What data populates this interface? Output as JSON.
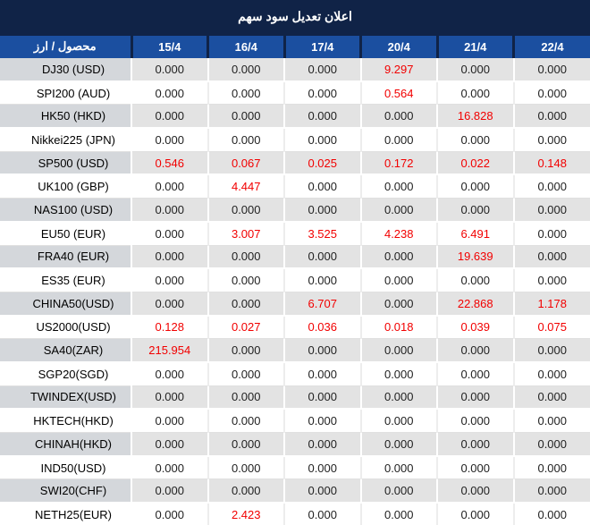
{
  "colors": {
    "title_bar": "#102347",
    "header_background": "#1b4fa0",
    "header_text": "#ffffff",
    "alt_row_background": "#e3e3e3",
    "alt_row_label_background": "#d4d7db",
    "value_text": "#222222",
    "highlight_red": "#f20000"
  },
  "chart_data": {
    "type": "table",
    "title": "اعلان تعديل سود سهم",
    "columns": [
      "محصول / ارز",
      "15/4",
      "16/4",
      "17/4",
      "20/4",
      "21/4",
      "22/4"
    ],
    "rows": [
      {
        "label": "DJ30 (USD)",
        "values": [
          "0.000",
          "0.000",
          "0.000",
          "9.297",
          "0.000",
          "0.000"
        ],
        "red": [
          3
        ]
      },
      {
        "label": "SPI200 (AUD)",
        "values": [
          "0.000",
          "0.000",
          "0.000",
          "0.564",
          "0.000",
          "0.000"
        ],
        "red": [
          3
        ]
      },
      {
        "label": "HK50 (HKD)",
        "values": [
          "0.000",
          "0.000",
          "0.000",
          "0.000",
          "16.828",
          "0.000"
        ],
        "red": [
          4
        ]
      },
      {
        "label": "Nikkei225 (JPN)",
        "values": [
          "0.000",
          "0.000",
          "0.000",
          "0.000",
          "0.000",
          "0.000"
        ],
        "red": []
      },
      {
        "label": "SP500 (USD)",
        "values": [
          "0.546",
          "0.067",
          "0.025",
          "0.172",
          "0.022",
          "0.148"
        ],
        "red": [
          0,
          1,
          2,
          3,
          4,
          5
        ]
      },
      {
        "label": "UK100 (GBP)",
        "values": [
          "0.000",
          "4.447",
          "0.000",
          "0.000",
          "0.000",
          "0.000"
        ],
        "red": [
          1
        ]
      },
      {
        "label": "NAS100 (USD)",
        "values": [
          "0.000",
          "0.000",
          "0.000",
          "0.000",
          "0.000",
          "0.000"
        ],
        "red": []
      },
      {
        "label": "EU50 (EUR)",
        "values": [
          "0.000",
          "3.007",
          "3.525",
          "4.238",
          "6.491",
          "0.000"
        ],
        "red": [
          1,
          2,
          3,
          4
        ]
      },
      {
        "label": "FRA40 (EUR)",
        "values": [
          "0.000",
          "0.000",
          "0.000",
          "0.000",
          "19.639",
          "0.000"
        ],
        "red": [
          4
        ]
      },
      {
        "label": "ES35 (EUR)",
        "values": [
          "0.000",
          "0.000",
          "0.000",
          "0.000",
          "0.000",
          "0.000"
        ],
        "red": []
      },
      {
        "label": "CHINA50(USD)",
        "values": [
          "0.000",
          "0.000",
          "6.707",
          "0.000",
          "22.868",
          "1.178"
        ],
        "red": [
          2,
          4,
          5
        ]
      },
      {
        "label": "US2000(USD)",
        "values": [
          "0.128",
          "0.027",
          "0.036",
          "0.018",
          "0.039",
          "0.075"
        ],
        "red": [
          0,
          1,
          2,
          3,
          4,
          5
        ]
      },
      {
        "label": "SA40(ZAR)",
        "values": [
          "215.954",
          "0.000",
          "0.000",
          "0.000",
          "0.000",
          "0.000"
        ],
        "red": [
          0
        ]
      },
      {
        "label": "SGP20(SGD)",
        "values": [
          "0.000",
          "0.000",
          "0.000",
          "0.000",
          "0.000",
          "0.000"
        ],
        "red": []
      },
      {
        "label": "TWINDEX(USD)",
        "values": [
          "0.000",
          "0.000",
          "0.000",
          "0.000",
          "0.000",
          "0.000"
        ],
        "red": []
      },
      {
        "label": "HKTECH(HKD)",
        "values": [
          "0.000",
          "0.000",
          "0.000",
          "0.000",
          "0.000",
          "0.000"
        ],
        "red": []
      },
      {
        "label": "CHINAH(HKD)",
        "values": [
          "0.000",
          "0.000",
          "0.000",
          "0.000",
          "0.000",
          "0.000"
        ],
        "red": []
      },
      {
        "label": "IND50(USD)",
        "values": [
          "0.000",
          "0.000",
          "0.000",
          "0.000",
          "0.000",
          "0.000"
        ],
        "red": []
      },
      {
        "label": "SWI20(CHF)",
        "values": [
          "0.000",
          "0.000",
          "0.000",
          "0.000",
          "0.000",
          "0.000"
        ],
        "red": []
      },
      {
        "label": "NETH25(EUR)",
        "values": [
          "0.000",
          "2.423",
          "0.000",
          "0.000",
          "0.000",
          "0.000"
        ],
        "red": [
          1
        ]
      }
    ]
  }
}
